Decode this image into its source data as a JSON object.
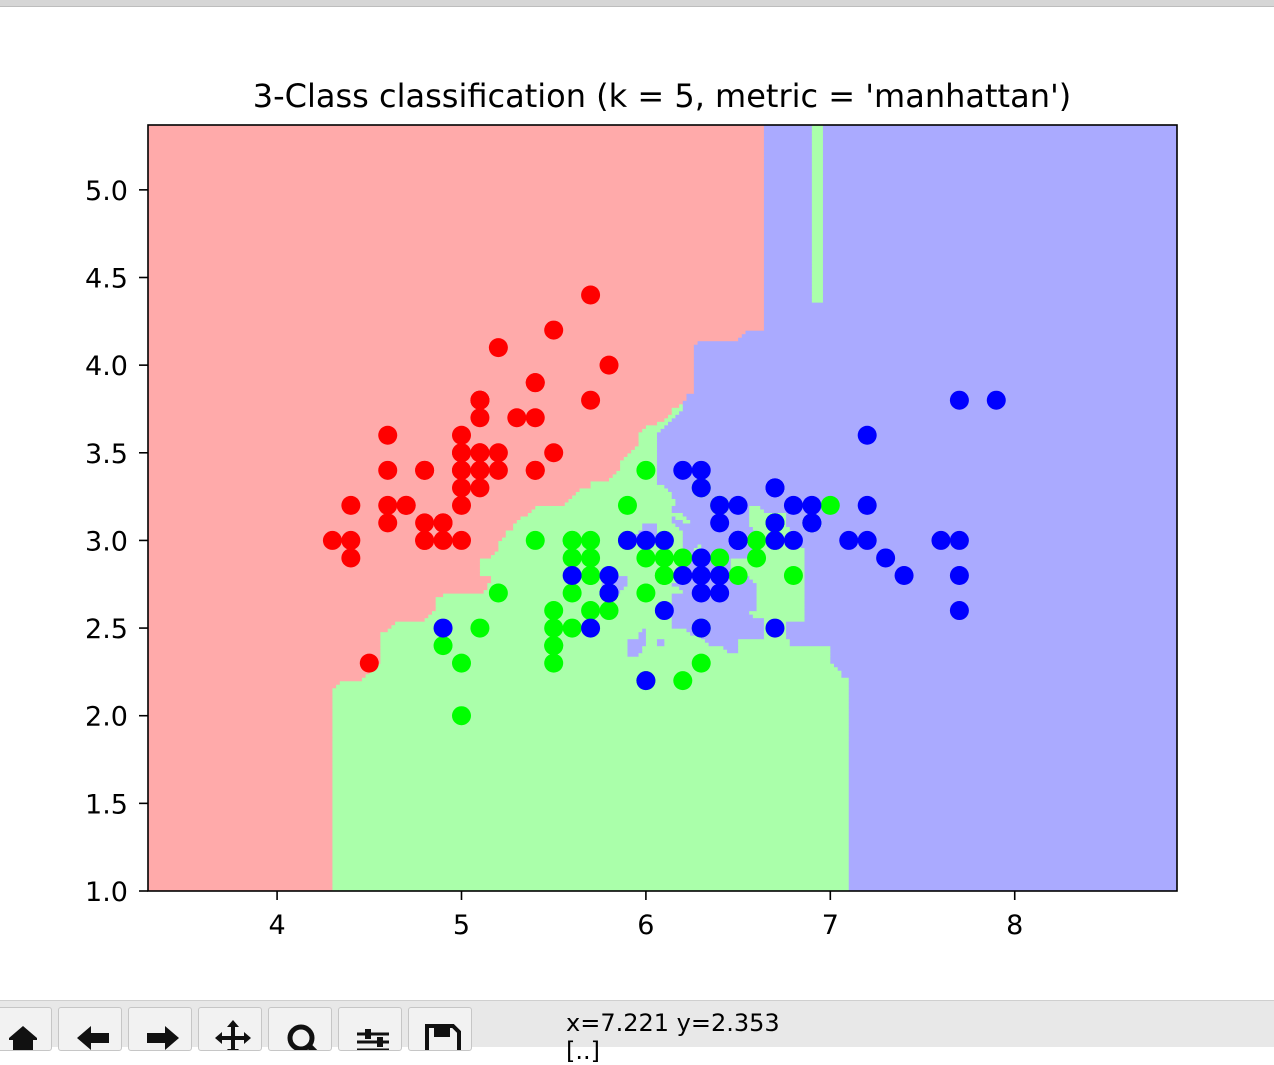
{
  "toolbar": {
    "buttons": [
      "home",
      "back",
      "forward",
      "pan",
      "zoom",
      "configure-subplots",
      "save"
    ],
    "coord_readout": "x=7.221 y=2.353",
    "coord_readout_line2": "[..]"
  },
  "colors": {
    "region_class0": "#ffaaaa",
    "region_class1": "#aaffaa",
    "region_class2": "#aaaaff",
    "point_class0": "#ff0000",
    "point_class1": "#00ff00",
    "point_class2": "#0000ff"
  },
  "chart_data": {
    "type": "scatter",
    "title": "3-Class classification (k = 5, metric = 'manhattan')",
    "xlabel": "",
    "ylabel": "",
    "xlim": [
      3.3,
      8.88
    ],
    "ylim": [
      1.0,
      5.37
    ],
    "xticks": [
      4,
      5,
      6,
      7,
      8
    ],
    "xtick_labels": [
      "4",
      "5",
      "6",
      "7",
      "8"
    ],
    "yticks": [
      1.0,
      1.5,
      2.0,
      2.5,
      3.0,
      3.5,
      4.0,
      4.5,
      5.0
    ],
    "ytick_labels": [
      "1.0",
      "1.5",
      "2.0",
      "2.5",
      "3.0",
      "3.5",
      "4.0",
      "4.5",
      "5.0"
    ],
    "grid": false,
    "series": [
      {
        "class": 0,
        "x": [
          5.1,
          4.9,
          4.7,
          4.6,
          5.0,
          5.4,
          4.6,
          5.0,
          4.4,
          4.9,
          5.4,
          4.8,
          4.8,
          4.3,
          5.8,
          5.7,
          5.4,
          5.1,
          5.7,
          5.1,
          5.4,
          5.1,
          4.6,
          5.1,
          4.8,
          5.0,
          5.0,
          5.2,
          5.2,
          4.7,
          4.8,
          5.4,
          5.2,
          5.5,
          4.9,
          5.0,
          5.5,
          4.4,
          5.1,
          5.0,
          4.5,
          4.4,
          5.0,
          5.1,
          4.8,
          5.1,
          4.6,
          5.3,
          5.0
        ],
        "y": [
          3.5,
          3.0,
          3.2,
          3.1,
          3.6,
          3.9,
          3.4,
          3.4,
          2.9,
          3.1,
          3.7,
          3.4,
          3.0,
          3.0,
          4.0,
          4.4,
          3.9,
          3.5,
          3.8,
          3.8,
          3.4,
          3.7,
          3.6,
          3.3,
          3.4,
          3.0,
          3.4,
          3.5,
          3.4,
          3.2,
          3.1,
          3.4,
          4.1,
          4.2,
          3.1,
          3.2,
          3.5,
          3.0,
          3.4,
          3.5,
          2.3,
          3.2,
          3.5,
          3.8,
          3.0,
          3.8,
          3.2,
          3.7,
          3.3
        ]
      },
      {
        "class": 1,
        "x": [
          7.0,
          6.4,
          6.9,
          5.5,
          6.5,
          5.7,
          6.3,
          4.9,
          6.6,
          5.2,
          5.0,
          5.9,
          6.0,
          6.1,
          5.6,
          6.7,
          5.6,
          5.8,
          6.2,
          5.6,
          5.9,
          6.1,
          6.3,
          6.1,
          6.4,
          6.6,
          6.8,
          6.7,
          6.0,
          5.7,
          5.5,
          5.5,
          5.8,
          6.0,
          5.4,
          6.0,
          6.7,
          6.3,
          5.6,
          5.5,
          5.5,
          6.1,
          5.8,
          5.0,
          5.6,
          5.7,
          5.7,
          6.2,
          5.1,
          5.7
        ],
        "y": [
          3.2,
          3.2,
          3.1,
          2.3,
          2.8,
          2.8,
          3.3,
          2.4,
          2.9,
          2.7,
          2.0,
          3.0,
          2.2,
          2.9,
          2.9,
          3.1,
          3.0,
          2.7,
          2.2,
          2.5,
          3.2,
          2.8,
          2.5,
          2.8,
          2.9,
          3.0,
          2.8,
          3.0,
          2.9,
          2.6,
          2.4,
          2.4,
          2.7,
          2.7,
          3.0,
          3.4,
          3.1,
          2.3,
          3.0,
          2.5,
          2.6,
          3.0,
          2.6,
          2.3,
          2.7,
          3.0,
          2.9,
          2.9,
          2.5,
          2.8
        ]
      },
      {
        "class": 2,
        "x": [
          6.3,
          5.8,
          7.1,
          6.3,
          6.5,
          7.6,
          4.9,
          7.3,
          6.7,
          7.2,
          6.5,
          6.4,
          6.8,
          5.7,
          5.8,
          6.4,
          6.5,
          7.7,
          7.7,
          6.0,
          6.9,
          5.6,
          7.7,
          6.3,
          6.7,
          7.2,
          6.2,
          6.1,
          6.4,
          7.2,
          7.4,
          7.9,
          6.4,
          6.3,
          6.1,
          7.7,
          6.3,
          6.4,
          6.0,
          6.9,
          6.7,
          6.9,
          5.8,
          6.8,
          6.7,
          6.7,
          6.3,
          6.5,
          6.2,
          5.9
        ],
        "y": [
          3.3,
          2.7,
          3.0,
          2.9,
          3.0,
          3.0,
          2.5,
          2.9,
          2.5,
          3.6,
          3.2,
          2.7,
          3.0,
          2.5,
          2.8,
          3.2,
          3.0,
          3.8,
          2.6,
          2.2,
          3.2,
          2.8,
          2.8,
          2.7,
          3.3,
          3.2,
          2.8,
          3.0,
          2.8,
          3.0,
          2.8,
          3.8,
          2.8,
          2.8,
          2.6,
          3.0,
          3.4,
          3.1,
          3.0,
          3.1,
          3.1,
          3.1,
          2.7,
          3.2,
          3.3,
          3.0,
          2.5,
          3.0,
          3.4,
          3.0
        ]
      }
    ]
  }
}
